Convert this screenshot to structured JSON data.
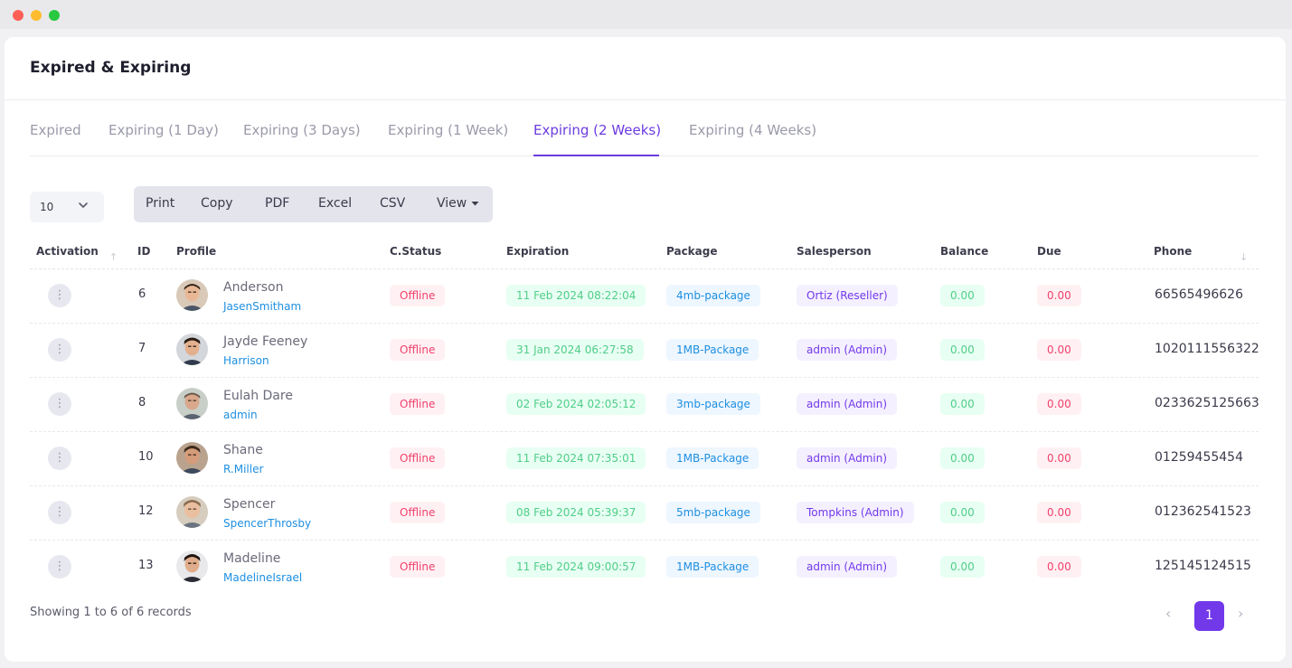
{
  "page": {
    "title": "Expired & Expiring"
  },
  "tabs": [
    {
      "label": "Expired"
    },
    {
      "label": "Expiring (1 Day)"
    },
    {
      "label": "Expiring (3 Days)"
    },
    {
      "label": "Expiring (1 Week)"
    },
    {
      "label": "Expiring (2 Weeks)",
      "active": true
    },
    {
      "label": "Expiring (4 Weeks)"
    }
  ],
  "toolbar": {
    "page_length": "10",
    "buttons": [
      "Print",
      "Copy",
      "PDF",
      "Excel",
      "CSV",
      "View"
    ]
  },
  "table": {
    "headers": [
      "Activation",
      "ID",
      "Profile",
      "C.Status",
      "Expiration",
      "Package",
      "Salesperson",
      "Balance",
      "Due",
      "Phone"
    ],
    "rows": [
      {
        "id": "6",
        "name": "Anderson",
        "username": "JasenSmitham",
        "status": "Offline",
        "expiration": "11 Feb 2024 08:22:04",
        "package": "4mb-package",
        "salesperson": "Ortiz (Reseller)",
        "balance": "0.00",
        "due": "0.00",
        "phone": "66565496626"
      },
      {
        "id": "7",
        "name": "Jayde Feeney",
        "username": "Harrison",
        "status": "Offline",
        "expiration": "31 Jan 2024 06:27:58",
        "package": "1MB-Package",
        "salesperson": "admin (Admin)",
        "balance": "0.00",
        "due": "0.00",
        "phone": "1020111556322"
      },
      {
        "id": "8",
        "name": "Eulah Dare",
        "username": "admin",
        "status": "Offline",
        "expiration": "02 Feb 2024 02:05:12",
        "package": "3mb-package",
        "salesperson": "admin (Admin)",
        "balance": "0.00",
        "due": "0.00",
        "phone": "0233625125663"
      },
      {
        "id": "10",
        "name": "Shane",
        "username": "R.Miller",
        "status": "Offline",
        "expiration": "11 Feb 2024 07:35:01",
        "package": "1MB-Package",
        "salesperson": "admin (Admin)",
        "balance": "0.00",
        "due": "0.00",
        "phone": "01259455454"
      },
      {
        "id": "12",
        "name": "Spencer",
        "username": "SpencerThrosby",
        "status": "Offline",
        "expiration": "08 Feb 2024 05:39:37",
        "package": "5mb-package",
        "salesperson": "Tompkins (Admin)",
        "balance": "0.00",
        "due": "0.00",
        "phone": "012362541523"
      },
      {
        "id": "13",
        "name": "Madeline",
        "username": "MadelineIsrael",
        "status": "Offline",
        "expiration": "11 Feb 2024 09:00:57",
        "package": "1MB-Package",
        "salesperson": "admin (Admin)",
        "balance": "0.00",
        "due": "0.00",
        "phone": "125145124515"
      }
    ]
  },
  "footer": {
    "info": "Showing 1 to 6 of 6 records",
    "current_page": "1"
  },
  "icons": {
    "row_action": "more-vertical-icon",
    "page_length_toggle": "chevron-down-icon",
    "view_toggle": "caret-down-icon",
    "prev": "chevron-left-icon",
    "next": "chevron-right-icon"
  },
  "colors": {
    "accent": "#7239ea",
    "tab_active": "#6c3ce0",
    "danger": "#f1416c",
    "success": "#50cd89",
    "info": "#1d8fe1"
  }
}
